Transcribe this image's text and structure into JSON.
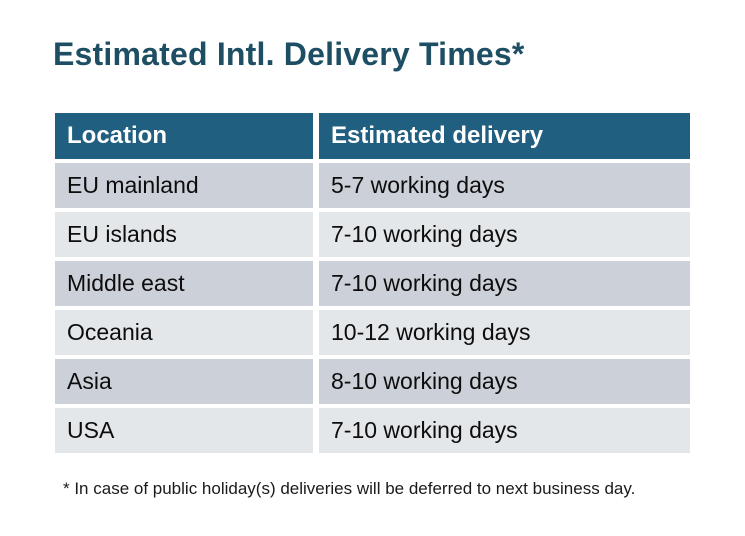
{
  "chart_data": {
    "type": "table",
    "title": "Estimated Intl. Delivery Times*",
    "columns": [
      "Location",
      "Estimated delivery"
    ],
    "rows": [
      [
        "EU mainland",
        "5-7 working days"
      ],
      [
        "EU islands",
        "7-10 working days"
      ],
      [
        "Middle east",
        "7-10 working days"
      ],
      [
        "Oceania",
        "10-12 working days"
      ],
      [
        "Asia",
        "8-10 working days"
      ],
      [
        "USA",
        "7-10 working days"
      ]
    ],
    "footnote": "* In case of public holiday(s) deliveries will be deferred to next business day.",
    "layout_hints": {
      "header_style": "solid dark teal band, white bold text",
      "row_striping": "alternating gray rows starting dark",
      "grid": "white gaps between rows and columns"
    }
  },
  "colors": {
    "background": "#ffffff",
    "title_text": "#1d4e63",
    "header_bg": "#215f80",
    "header_text": "#ffffff",
    "row_odd_bg": "#ccd0d8",
    "row_even_bg": "#e4e7ea",
    "cell_text": "#0d0d0d",
    "footnote_text": "#1a1a1a"
  }
}
